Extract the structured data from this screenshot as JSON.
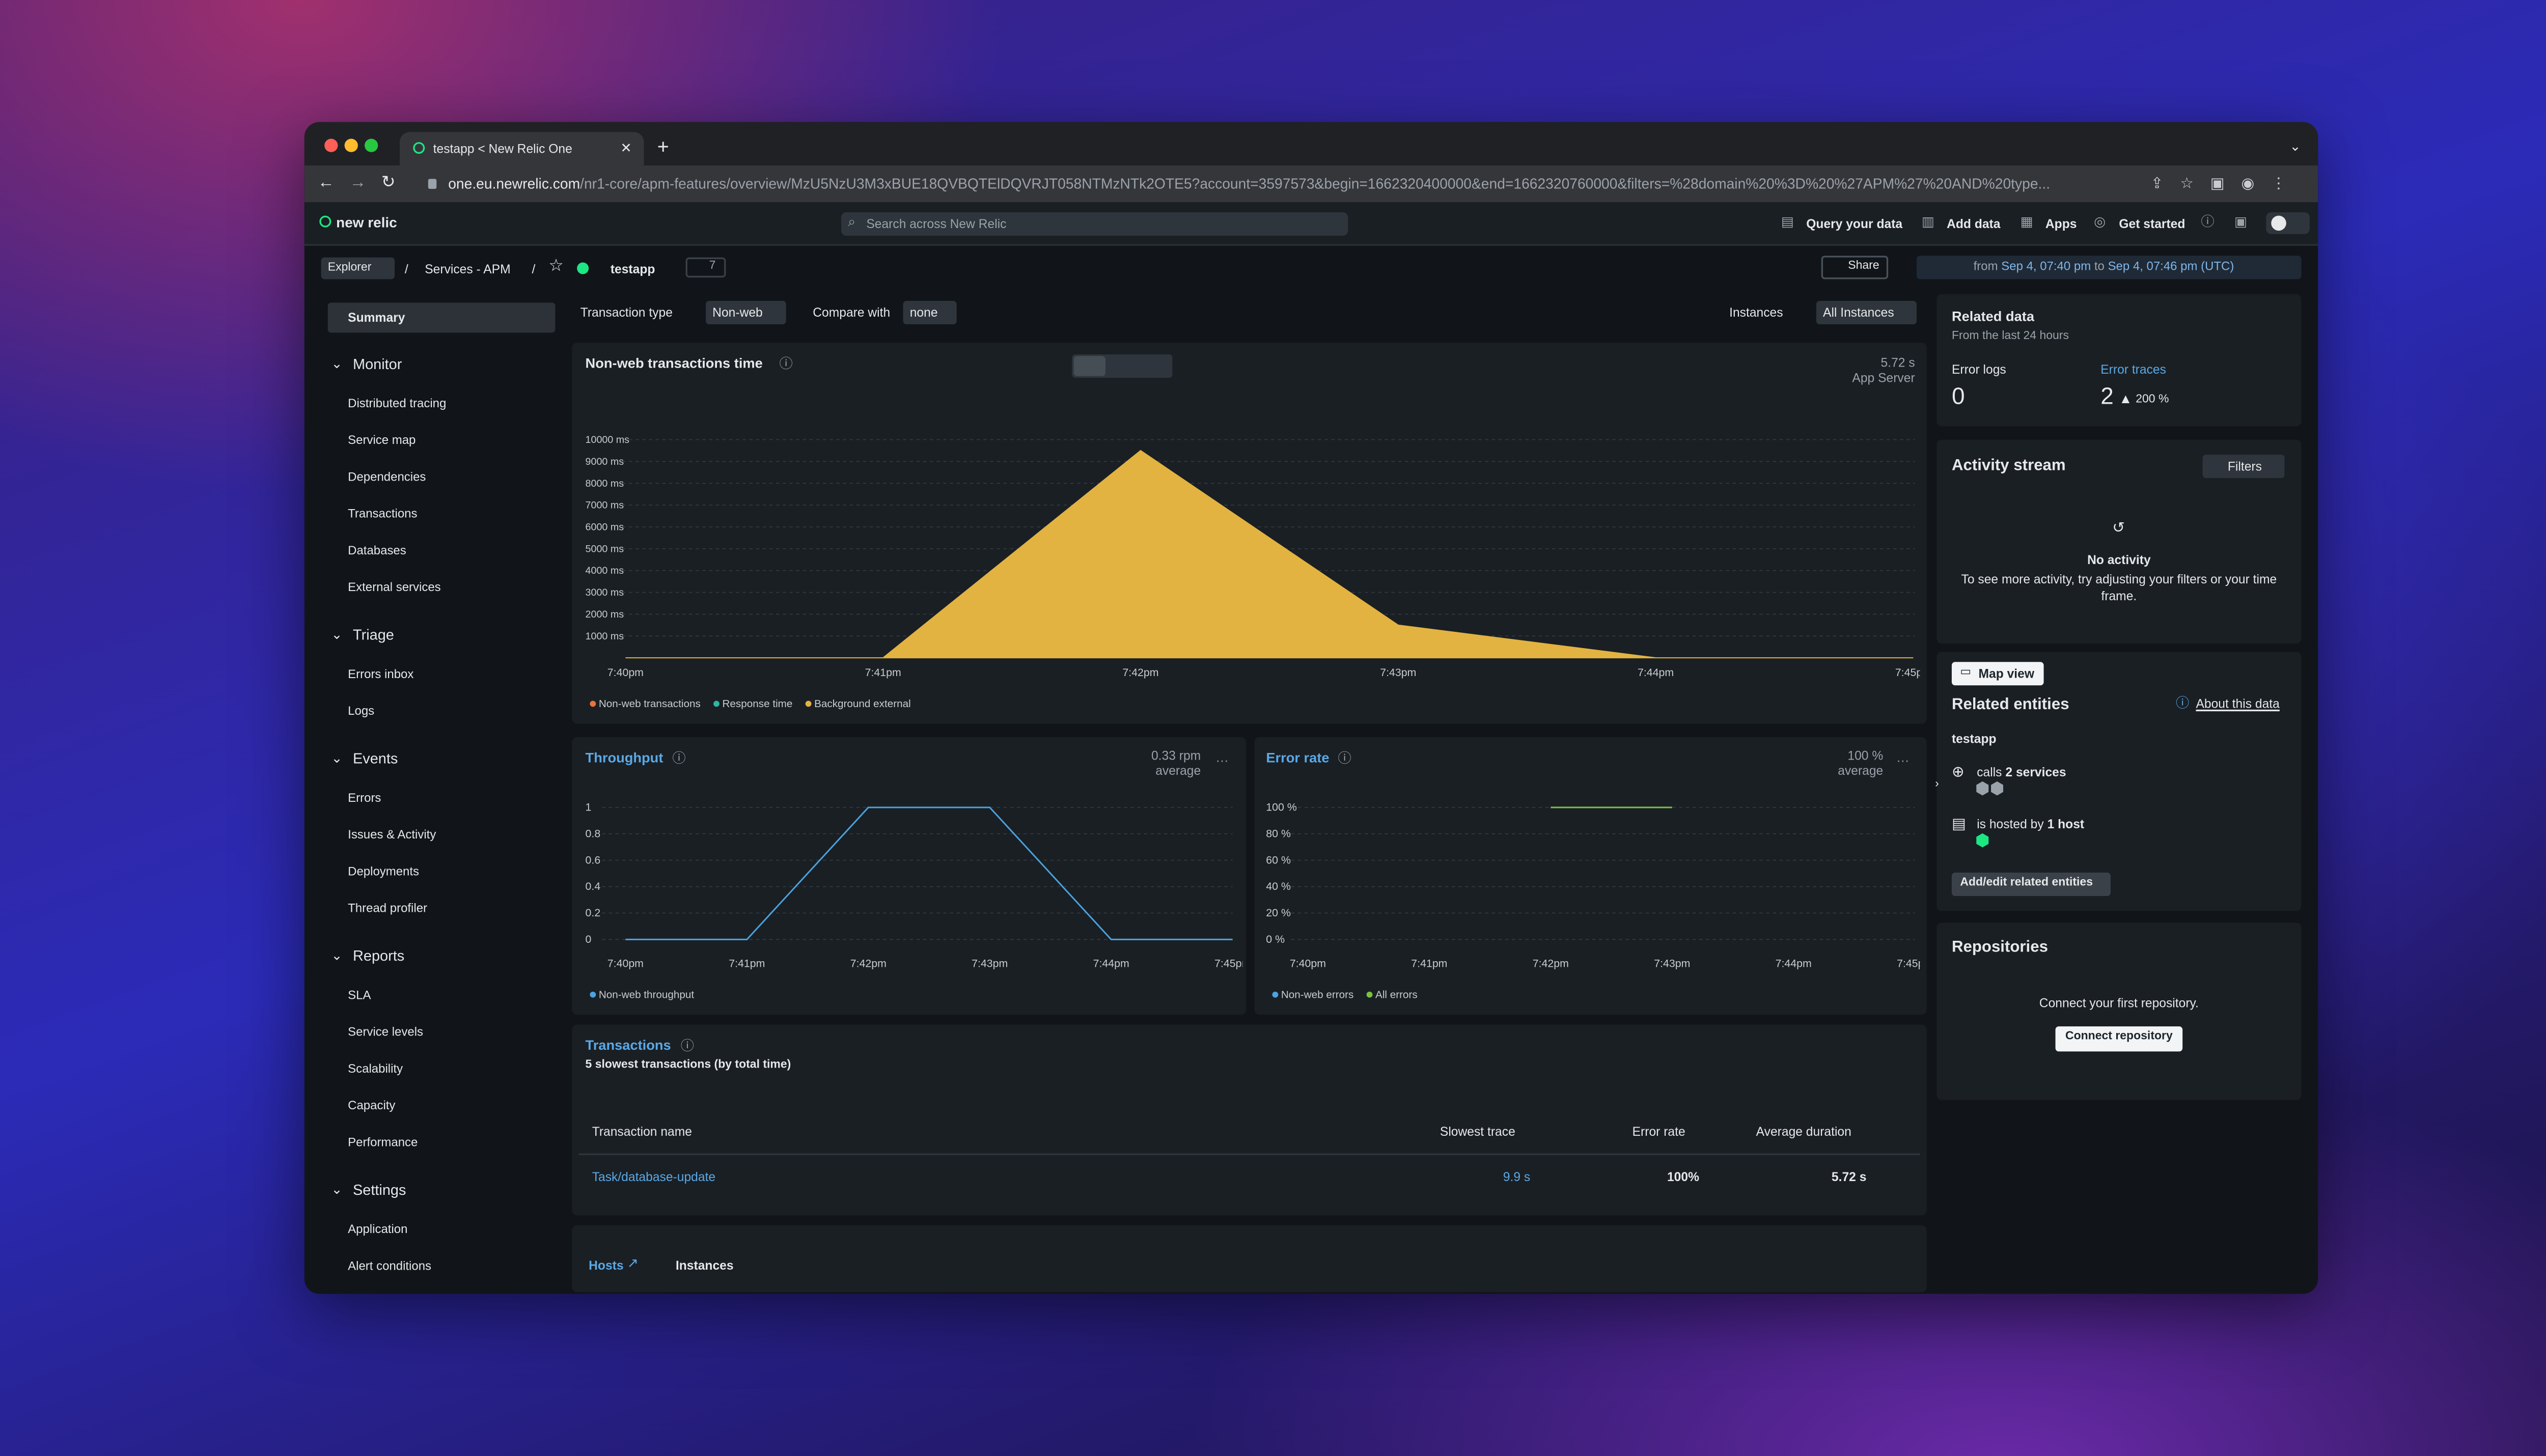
{
  "browser": {
    "tab_title": "testapp < New Relic One",
    "url_host": "one.eu.newrelic.com",
    "url_path": "/nr1-core/apm-features/overview/MzU5NzU3M3xBUE18QVBQTElDQVRJT058NTMzNTk2OTE5?account=3597573&begin=1662320400000&end=1662320760000&filters=%28domain%20%3D%20%27APM%27%20AND%20type..."
  },
  "header": {
    "logo": "new relic",
    "search": "Search across New Relic",
    "actions": [
      "Query your data",
      "Add data",
      "Apps",
      "Get started"
    ]
  },
  "breadcrumb": {
    "explorer": "Explorer",
    "section": "Services - APM",
    "entity": "testapp",
    "tags": "7",
    "share": "Share",
    "time_from_label": "from",
    "time_from": "Sep 4, 07:40 pm",
    "time_to_label": "to",
    "time_to": "Sep 4, 07:46 pm (UTC)"
  },
  "sidebar": {
    "summary": "Summary",
    "sections": [
      {
        "title": "Monitor",
        "items": [
          "Distributed tracing",
          "Service map",
          "Dependencies",
          "Transactions",
          "Databases",
          "External services"
        ]
      },
      {
        "title": "Triage",
        "items": [
          "Errors inbox",
          "Logs"
        ]
      },
      {
        "title": "Events",
        "items": [
          "Errors",
          "Issues & Activity",
          "Deployments",
          "Thread profiler"
        ]
      },
      {
        "title": "Reports",
        "items": [
          "SLA",
          "Service levels",
          "Scalability",
          "Capacity",
          "Performance"
        ]
      },
      {
        "title": "Settings",
        "items": [
          "Application",
          "Alert conditions"
        ]
      }
    ]
  },
  "filters": {
    "transaction_type_label": "Transaction type",
    "transaction_type": "Non-web",
    "compare_label": "Compare with",
    "compare": "none",
    "instances_label": "Instances",
    "instances": "All Instances"
  },
  "chart_data": [
    {
      "type": "area",
      "title": "Non-web transactions time",
      "summary_value": "5.72 s",
      "summary_label": "App Server",
      "x": [
        "7:40pm",
        "7:41pm",
        "7:42pm",
        "7:43pm",
        "7:44pm",
        "7:45pm"
      ],
      "series": [
        {
          "name": "Non-web transactions",
          "color": "#e8743b",
          "values": [
            null,
            null,
            null,
            null,
            null,
            null
          ]
        },
        {
          "name": "Response time",
          "color": "#2fb5a5",
          "values": [
            null,
            null,
            null,
            null,
            null,
            null
          ]
        },
        {
          "name": "Background external",
          "color": "#e2b340",
          "values": [
            0,
            0,
            9500,
            1500,
            0,
            0
          ]
        }
      ],
      "ylim": [
        0,
        10000
      ],
      "yticks": [
        {
          "value": 1000,
          "label": "1000 ms"
        },
        {
          "value": 2000,
          "label": "2000 ms"
        },
        {
          "value": 3000,
          "label": "3000 ms"
        },
        {
          "value": 4000,
          "label": "4000 ms"
        },
        {
          "value": 5000,
          "label": "5000 ms"
        },
        {
          "value": 6000,
          "label": "6000 ms"
        },
        {
          "value": 7000,
          "label": "7000 ms"
        },
        {
          "value": 8000,
          "label": "8000 ms"
        },
        {
          "value": 9000,
          "label": "9000 ms"
        },
        {
          "value": 10000,
          "label": "10000 ms"
        }
      ],
      "grid": true
    },
    {
      "type": "line",
      "title": "Throughput",
      "summary_value": "0.33 rpm",
      "summary_label": "average",
      "x": [
        "7:40pm",
        "7:41pm",
        "7:42pm",
        "7:43pm",
        "7:44pm",
        "7:45pm"
      ],
      "series": [
        {
          "name": "Non-web throughput",
          "color": "#4aa3df",
          "values": [
            0,
            0,
            1,
            1,
            0,
            0
          ]
        }
      ],
      "ylim": [
        0,
        1
      ],
      "yticks": [
        0,
        0.2,
        0.4,
        0.6,
        0.8,
        1
      ],
      "grid": true
    },
    {
      "type": "line",
      "title": "Error rate",
      "summary_value": "100 %",
      "summary_label": "average",
      "x": [
        "7:40pm",
        "7:41pm",
        "7:42pm",
        "7:43pm",
        "7:44pm",
        "7:45pm"
      ],
      "series": [
        {
          "name": "Non-web errors",
          "color": "#4aa3df",
          "values": [
            null,
            null,
            null,
            null,
            null,
            null
          ]
        },
        {
          "name": "All errors",
          "color": "#7bc043",
          "values": [
            null,
            null,
            100,
            100,
            null,
            null
          ]
        }
      ],
      "ylim": [
        0,
        100
      ],
      "yticks": [
        {
          "value": 0,
          "label": "0 %"
        },
        {
          "value": 20,
          "label": "20 %"
        },
        {
          "value": 40,
          "label": "40 %"
        },
        {
          "value": 60,
          "label": "60 %"
        },
        {
          "value": 80,
          "label": "80 %"
        },
        {
          "value": 100,
          "label": "100 %"
        }
      ],
      "grid": true
    }
  ],
  "transactions": {
    "title": "Transactions",
    "subtitle": "5 slowest transactions (by total time)",
    "columns": [
      "Transaction name",
      "Slowest trace",
      "Error rate",
      "Average duration"
    ],
    "rows": [
      [
        "Task/database-update",
        "9.9 s",
        "100%",
        "5.72 s"
      ]
    ]
  },
  "tabs": [
    "Hosts",
    "Instances"
  ],
  "related_data": {
    "title": "Related data",
    "subtitle": "From the last 24 hours",
    "error_logs_label": "Error logs",
    "error_logs": "0",
    "error_traces_label": "Error traces",
    "error_traces": "2",
    "error_traces_change": "200 %"
  },
  "activity": {
    "title": "Activity stream",
    "filters": "Filters",
    "empty_title": "No activity",
    "empty_text": "To see more activity, try adjusting your filters or your time frame."
  },
  "related_entities": {
    "map_view": "Map view",
    "title": "Related entities",
    "about": "About this data",
    "entity": "testapp",
    "calls_label": "calls",
    "calls": "2 services",
    "hosted_label": "is hosted by",
    "hosted": "1 host",
    "edit": "Add/edit related entities"
  },
  "repositories": {
    "title": "Repositories",
    "text": "Connect your first repository.",
    "button": "Connect repository"
  }
}
